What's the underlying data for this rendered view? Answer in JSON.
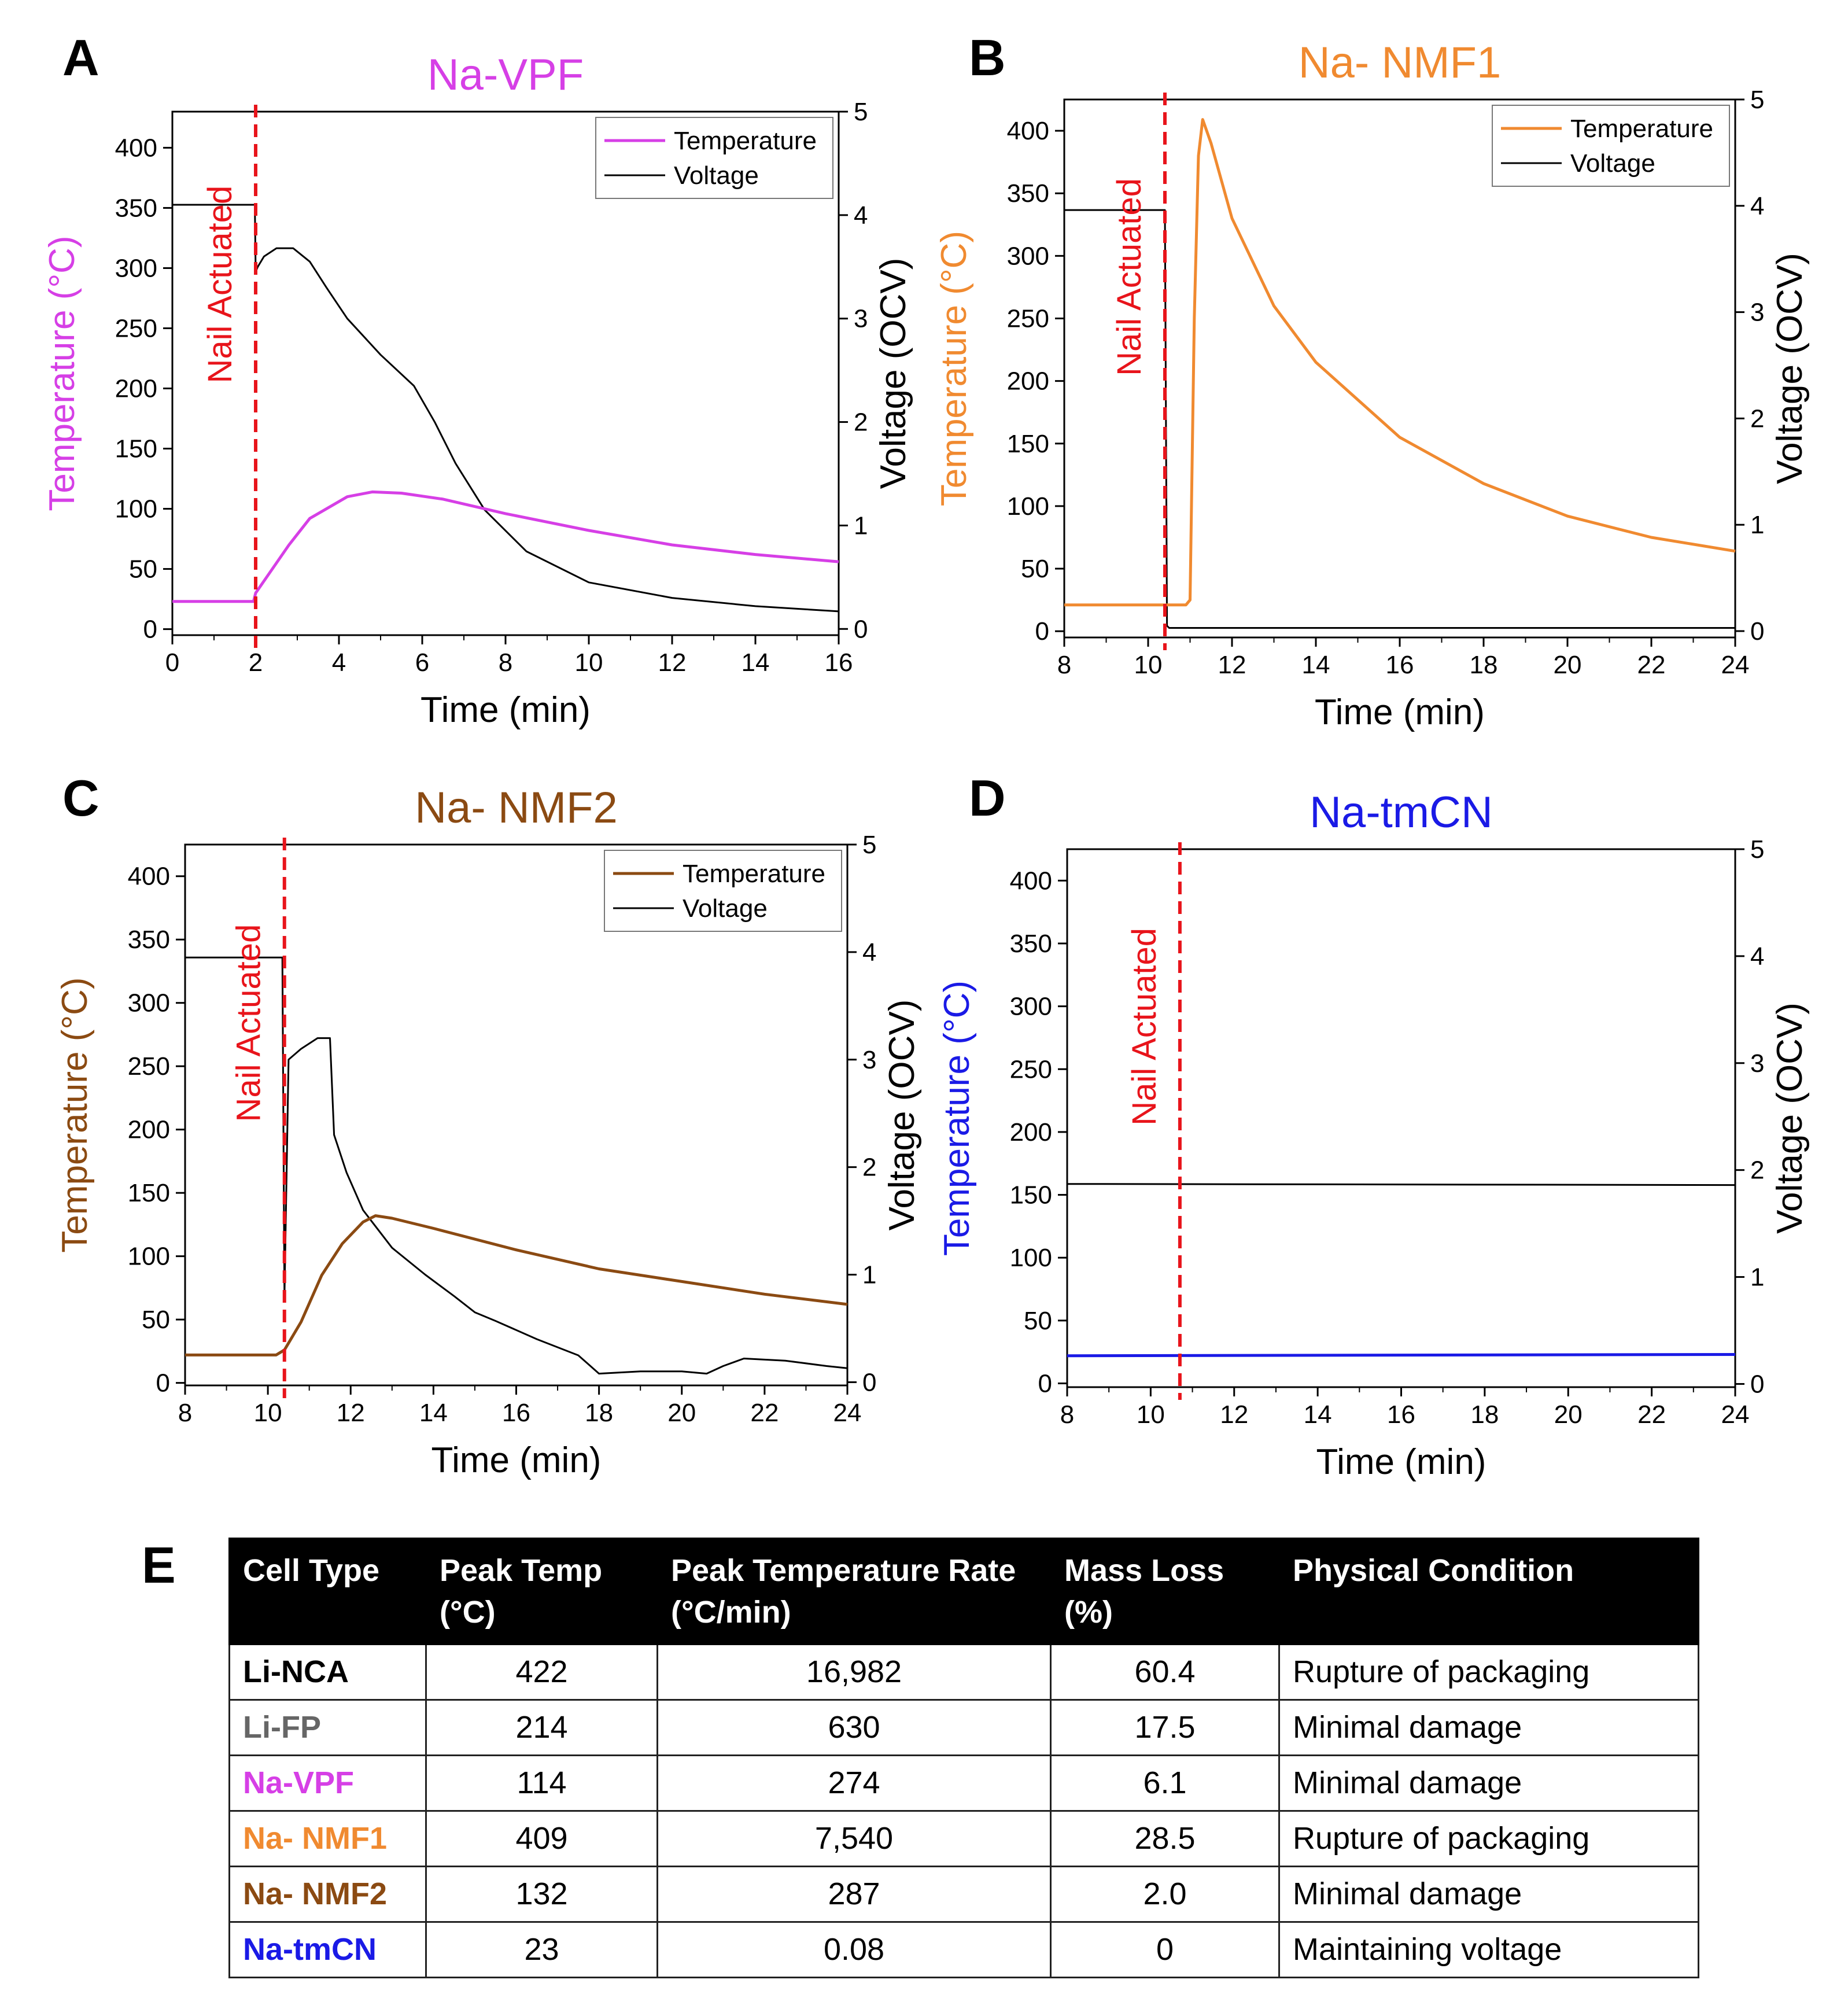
{
  "chart_data": [
    {
      "panel": "A",
      "type": "line",
      "title": "Na-VPF",
      "title_color": "#d63fe6",
      "temp_color": "#d63fe6",
      "xlabel": "Time (min)",
      "ylabel_left": "Temperature (°C)",
      "ylabel_right": "Voltage (OCV)",
      "xlim": [
        0,
        16
      ],
      "xticks": [
        0,
        2,
        4,
        6,
        8,
        10,
        12,
        14,
        16
      ],
      "ylim_left": [
        -5,
        430
      ],
      "yticks_left": [
        0,
        50,
        100,
        150,
        200,
        250,
        300,
        350,
        400
      ],
      "ylim_right": [
        -0.06,
        5
      ],
      "yticks_right": [
        0,
        1,
        2,
        3,
        4,
        5
      ],
      "nail_time": 2,
      "nail_label": "Nail Actuated",
      "legend": [
        "Temperature",
        "Voltage"
      ],
      "series": [
        {
          "name": "Temperature",
          "axis": "left",
          "x": [
            0,
            1.95,
            2.0,
            2.3,
            2.8,
            3.3,
            3.7,
            4.2,
            4.8,
            5.5,
            6.5,
            8,
            10,
            12,
            14,
            16
          ],
          "y": [
            23,
            23,
            30,
            45,
            70,
            92,
            100,
            110,
            114,
            113,
            108,
            96,
            82,
            70,
            62,
            56
          ]
        },
        {
          "name": "Voltage",
          "axis": "right",
          "x": [
            0,
            1.98,
            2.0,
            2.05,
            2.2,
            2.5,
            2.9,
            3.3,
            3.7,
            4.2,
            5.0,
            5.8,
            6.3,
            6.8,
            7.5,
            8.5,
            10,
            12,
            14,
            16
          ],
          "y": [
            4.1,
            4.1,
            3.45,
            3.5,
            3.6,
            3.68,
            3.68,
            3.55,
            3.3,
            3.0,
            2.65,
            2.35,
            2.0,
            1.6,
            1.15,
            0.75,
            0.45,
            0.3,
            0.22,
            0.17
          ]
        }
      ]
    },
    {
      "panel": "B",
      "type": "line",
      "title": "Na- NMF1",
      "title_color": "#f08a30",
      "temp_color": "#f08a30",
      "xlabel": "Time (min)",
      "ylabel_left": "Temperature (°C)",
      "ylabel_right": "Voltage (OCV)",
      "xlim": [
        8,
        24
      ],
      "xticks": [
        8,
        10,
        12,
        14,
        16,
        18,
        20,
        22,
        24
      ],
      "ylim_left": [
        -5,
        425
      ],
      "yticks_left": [
        0,
        50,
        100,
        150,
        200,
        250,
        300,
        350,
        400
      ],
      "ylim_right": [
        -0.06,
        5
      ],
      "yticks_right": [
        0,
        1,
        2,
        3,
        4,
        5
      ],
      "nail_time": 10.4,
      "nail_label": "Nail Actuated",
      "legend": [
        "Temperature",
        "Voltage"
      ],
      "series": [
        {
          "name": "Temperature",
          "axis": "left",
          "x": [
            8,
            10.9,
            11.0,
            11.1,
            11.2,
            11.3,
            11.5,
            12,
            13,
            14,
            16,
            18,
            20,
            22,
            24
          ],
          "y": [
            21,
            21,
            25,
            250,
            380,
            409,
            390,
            330,
            260,
            215,
            155,
            118,
            92,
            75,
            64
          ]
        },
        {
          "name": "Voltage",
          "axis": "right",
          "x": [
            8,
            10.4,
            10.45,
            10.5,
            24
          ],
          "y": [
            3.96,
            3.96,
            0.05,
            0.03,
            0.03
          ]
        }
      ]
    },
    {
      "panel": "C",
      "type": "line",
      "title": "Na- NMF2",
      "title_color": "#8b4a12",
      "temp_color": "#8b4a12",
      "xlabel": "Time (min)",
      "ylabel_left": "Temperature (°C)",
      "ylabel_right": "Voltage (OCV)",
      "xlim": [
        8,
        24
      ],
      "xticks": [
        8,
        10,
        12,
        14,
        16,
        18,
        20,
        22,
        24
      ],
      "ylim_left": [
        -2,
        425
      ],
      "yticks_left": [
        0,
        50,
        100,
        150,
        200,
        250,
        300,
        350,
        400
      ],
      "ylim_right": [
        -0.03,
        5
      ],
      "yticks_right": [
        0,
        1,
        2,
        3,
        4,
        5
      ],
      "nail_time": 10.4,
      "nail_label": "Nail Actuated",
      "legend": [
        "Temperature",
        "Voltage"
      ],
      "series": [
        {
          "name": "Temperature",
          "axis": "left",
          "x": [
            8,
            10.2,
            10.4,
            10.8,
            11.3,
            11.8,
            12.3,
            12.6,
            13,
            14,
            16,
            18,
            20,
            22,
            24
          ],
          "y": [
            22,
            22,
            26,
            48,
            85,
            110,
            127,
            132,
            130,
            122,
            105,
            90,
            80,
            70,
            62
          ]
        },
        {
          "name": "Voltage",
          "axis": "right",
          "x": [
            8,
            10.35,
            10.4,
            10.5,
            10.8,
            11.2,
            11.4,
            11.5,
            11.6,
            11.9,
            12.3,
            13.0,
            13.8,
            14.5,
            15.0,
            15.5,
            16.5,
            17.5,
            18.0,
            19.0,
            20.0,
            20.6,
            21.0,
            21.5,
            22.5,
            23.5,
            24
          ],
          "y": [
            3.95,
            3.95,
            0.8,
            3.0,
            3.1,
            3.2,
            3.2,
            3.2,
            2.3,
            1.95,
            1.6,
            1.25,
            1.0,
            0.8,
            0.65,
            0.57,
            0.4,
            0.25,
            0.08,
            0.1,
            0.1,
            0.08,
            0.15,
            0.22,
            0.2,
            0.15,
            0.13
          ]
        }
      ]
    },
    {
      "panel": "D",
      "type": "line",
      "title": "Na-tmCN",
      "title_color": "#1a1ae6",
      "temp_color": "#1a1ae6",
      "xlabel": "Time (min)",
      "ylabel_left": "Temperature (°C)",
      "ylabel_right": "Voltage (OCV)",
      "xlim": [
        8,
        24
      ],
      "xticks": [
        8,
        10,
        12,
        14,
        16,
        18,
        20,
        22,
        24
      ],
      "ylim_left": [
        -3,
        425
      ],
      "yticks_left": [
        0,
        50,
        100,
        150,
        200,
        250,
        300,
        350,
        400
      ],
      "ylim_right": [
        -0.03,
        5
      ],
      "yticks_right": [
        0,
        1,
        2,
        3,
        4,
        5
      ],
      "nail_time": 10.7,
      "nail_label": "Nail Actuated",
      "legend": [],
      "series": [
        {
          "name": "Temperature",
          "axis": "left",
          "x": [
            8,
            24
          ],
          "y": [
            22,
            23
          ]
        },
        {
          "name": "Voltage",
          "axis": "right",
          "x": [
            8,
            24
          ],
          "y": [
            1.87,
            1.86
          ]
        }
      ]
    }
  ],
  "table": {
    "label": "E",
    "headers": [
      "Cell Type",
      "Peak Temp (°C)",
      "Peak Temperature Rate (°C/min)",
      "Mass Loss (%)",
      "Physical Condition"
    ],
    "rows": [
      {
        "cell_type": "Li-NCA",
        "color": "#000000",
        "peak_temp": "422",
        "peak_rate": "16,982",
        "mass_loss": "60.4",
        "condition": "Rupture of packaging"
      },
      {
        "cell_type": "Li-FP",
        "color": "#666666",
        "peak_temp": "214",
        "peak_rate": "630",
        "mass_loss": "17.5",
        "condition": "Minimal damage"
      },
      {
        "cell_type": "Na-VPF",
        "color": "#d63fe6",
        "peak_temp": "114",
        "peak_rate": "274",
        "mass_loss": "6.1",
        "condition": "Minimal damage"
      },
      {
        "cell_type": "Na- NMF1",
        "color": "#f08a30",
        "peak_temp": "409",
        "peak_rate": "7,540",
        "mass_loss": "28.5",
        "condition": "Rupture of packaging"
      },
      {
        "cell_type": "Na- NMF2",
        "color": "#8b4a12",
        "peak_temp": "132",
        "peak_rate": "287",
        "mass_loss": "2.0",
        "condition": "Minimal damage"
      },
      {
        "cell_type": "Na-tmCN",
        "color": "#1a1ae6",
        "peak_temp": "23",
        "peak_rate": "0.08",
        "mass_loss": "0",
        "condition": "Maintaining voltage"
      }
    ]
  }
}
